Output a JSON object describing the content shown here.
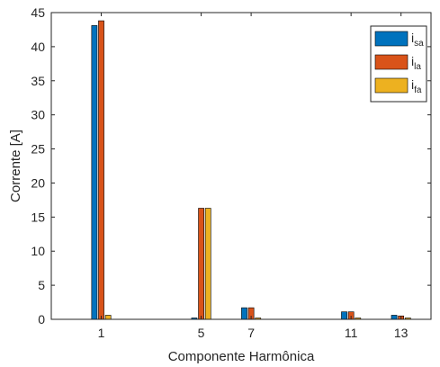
{
  "chart_data": {
    "type": "bar",
    "xlabel": "Componente Harmônica",
    "ylabel": "Corrente [A]",
    "ylim": [
      0,
      45
    ],
    "yticks": [
      0,
      5,
      10,
      15,
      20,
      25,
      30,
      35,
      40,
      45
    ],
    "xlim": [
      -1,
      14.2
    ],
    "xticks": [
      1,
      5,
      7,
      11,
      13
    ],
    "grid": false,
    "legend_position": "top-right",
    "categories": [
      1,
      5,
      7,
      11,
      13
    ],
    "series": [
      {
        "name": "i",
        "name_sub": "sa",
        "color": "#0072BD",
        "values": [
          43.1,
          0.2,
          1.7,
          1.1,
          0.6
        ]
      },
      {
        "name": "i",
        "name_sub": "la",
        "color": "#D95319",
        "values": [
          43.8,
          16.3,
          1.7,
          1.1,
          0.5
        ]
      },
      {
        "name": "i",
        "name_sub": "fa",
        "color": "#EDB120",
        "values": [
          0.6,
          16.3,
          0.2,
          0.2,
          0.2
        ]
      }
    ]
  }
}
